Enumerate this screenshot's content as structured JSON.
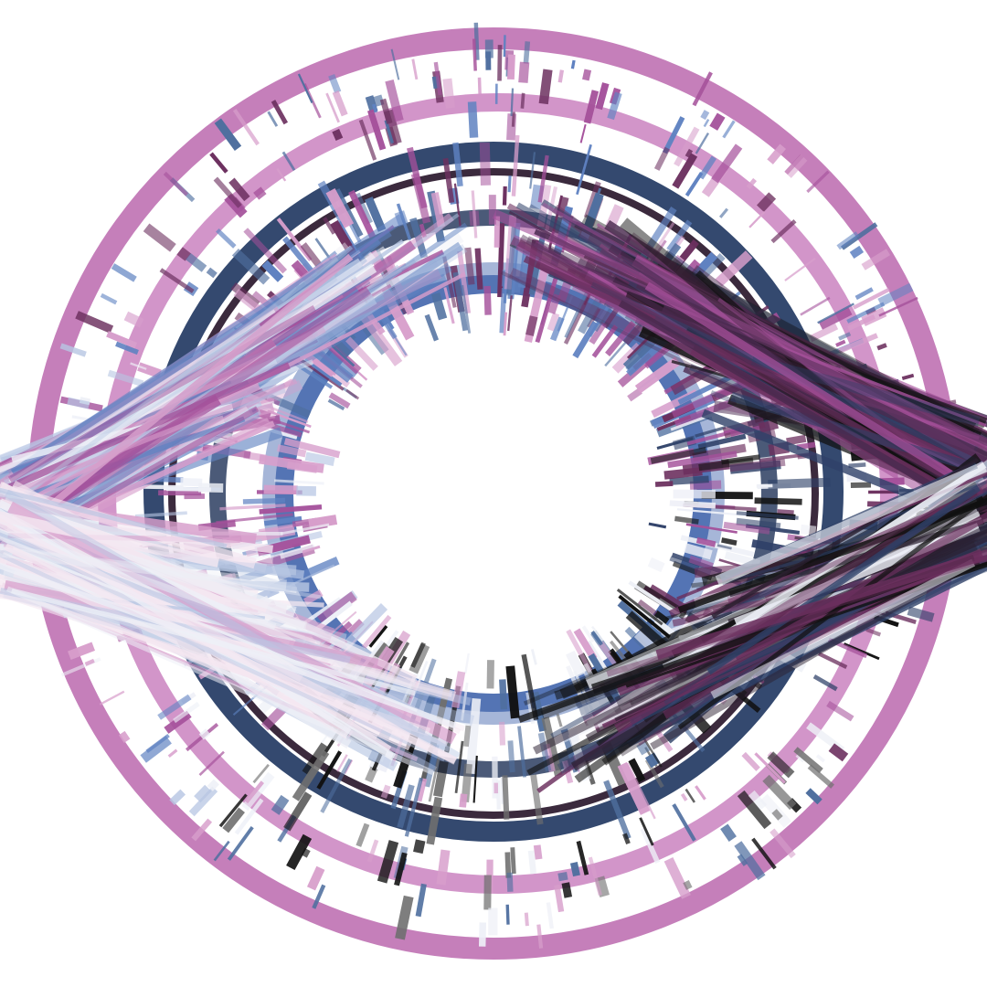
{
  "artwork": {
    "kind": "generative circular rings with radial strokes",
    "rings": [
      {
        "name": "outer-magenta-ring",
        "color": "#c57fba"
      },
      {
        "name": "second-magenta-ring",
        "color": "#d295c9"
      },
      {
        "name": "navy-ring",
        "color": "#34496f"
      },
      {
        "name": "dark-maroon-ring",
        "color": "#3b2a3d"
      },
      {
        "name": "slate-ring",
        "color": "#4b5a78"
      },
      {
        "name": "inner-blue-ring",
        "color": "#5474b4"
      },
      {
        "name": "inner-pale-blue-ring",
        "color": "#a6b6d8"
      }
    ],
    "stroke_palette": {
      "magenta": "#a4509a",
      "pink": "#d79ecb",
      "plum": "#6b2f5e",
      "navy": "#2f4168",
      "steel": "#4f6f9f",
      "blue": "#5f82c1",
      "pale_blue": "#b7c6e3",
      "near_white": "#eef0f7",
      "black": "#111111",
      "gray": "#6f6f6f"
    }
  }
}
